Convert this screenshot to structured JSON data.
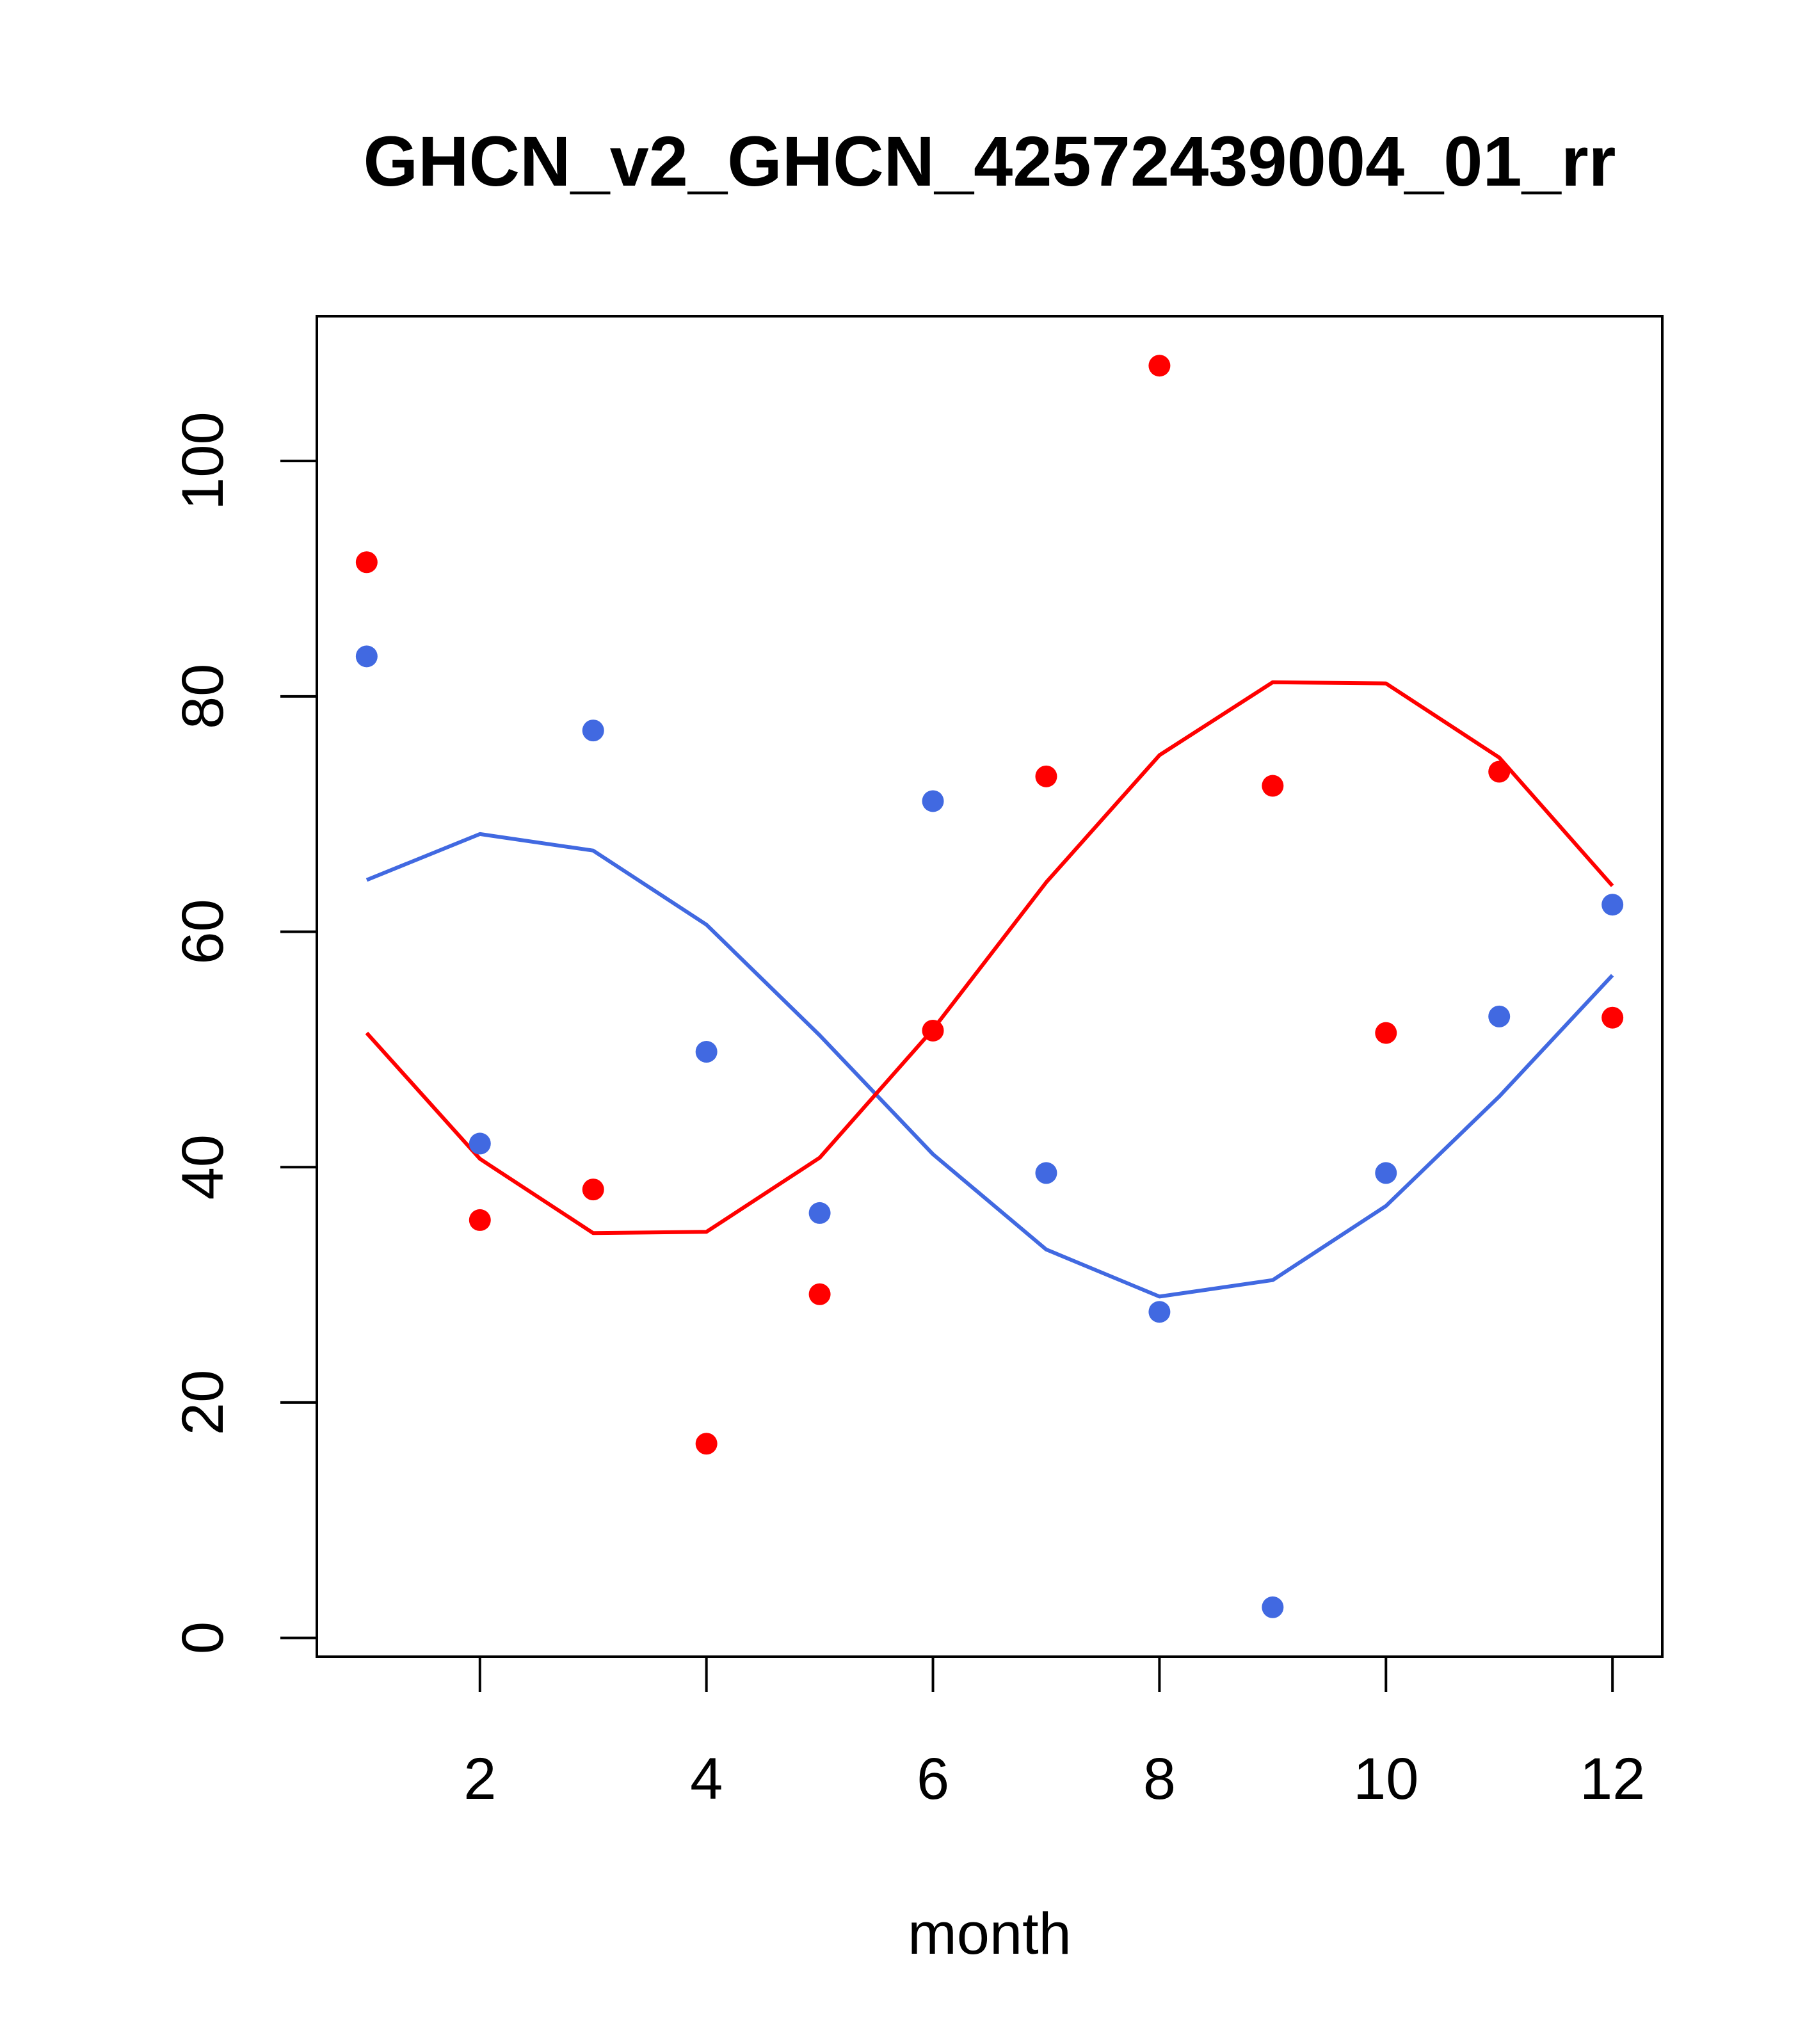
{
  "chart_data": {
    "type": "scatter",
    "title": "GHCN_v2_GHCN_42572439004_01_rr",
    "xlabel": "month",
    "ylabel": "",
    "xlim": [
      0.56,
      12.44
    ],
    "ylim": [
      -1.6,
      112.3
    ],
    "x_ticks": [
      2,
      4,
      6,
      8,
      10,
      12
    ],
    "x_tick_labels": [
      "2",
      "4",
      "6",
      "8",
      "10",
      "12"
    ],
    "y_ticks": [
      0,
      20,
      40,
      60,
      80,
      100
    ],
    "y_tick_labels": [
      "0",
      "20",
      "40",
      "60",
      "80",
      "100"
    ],
    "grid": false,
    "legend": "none",
    "series": [
      {
        "color": "#4169E1",
        "style": "points",
        "x": [
          1,
          2,
          3,
          4,
          5,
          6,
          7,
          8,
          9,
          10,
          11,
          12
        ],
        "values": [
          83.4,
          42.0,
          77.1,
          49.8,
          36.1,
          71.1,
          39.5,
          27.7,
          2.6,
          39.5,
          52.8,
          62.3
        ]
      },
      {
        "color": "#FF0000",
        "style": "points",
        "x": [
          1,
          2,
          3,
          4,
          5,
          6,
          7,
          8,
          9,
          10,
          11,
          12
        ],
        "values": [
          91.4,
          35.5,
          38.1,
          16.5,
          29.2,
          51.6,
          73.2,
          108.1,
          72.4,
          51.4,
          73.6,
          52.7
        ]
      },
      {
        "color": "#4169E1",
        "style": "line",
        "x": [
          1,
          2,
          3,
          4,
          5,
          6,
          7,
          8,
          9,
          10,
          11,
          12
        ],
        "values": [
          64.4,
          68.3,
          66.9,
          60.6,
          51.2,
          41.1,
          33.0,
          29.0,
          30.4,
          36.7,
          46.0,
          56.3
        ]
      },
      {
        "color": "#FF0000",
        "style": "line",
        "x": [
          1,
          2,
          3,
          4,
          5,
          6,
          7,
          8,
          9,
          10,
          11,
          12
        ],
        "values": [
          51.4,
          40.7,
          34.4,
          34.5,
          40.8,
          51.7,
          64.2,
          75.0,
          81.2,
          81.1,
          74.8,
          63.9
        ]
      }
    ]
  }
}
